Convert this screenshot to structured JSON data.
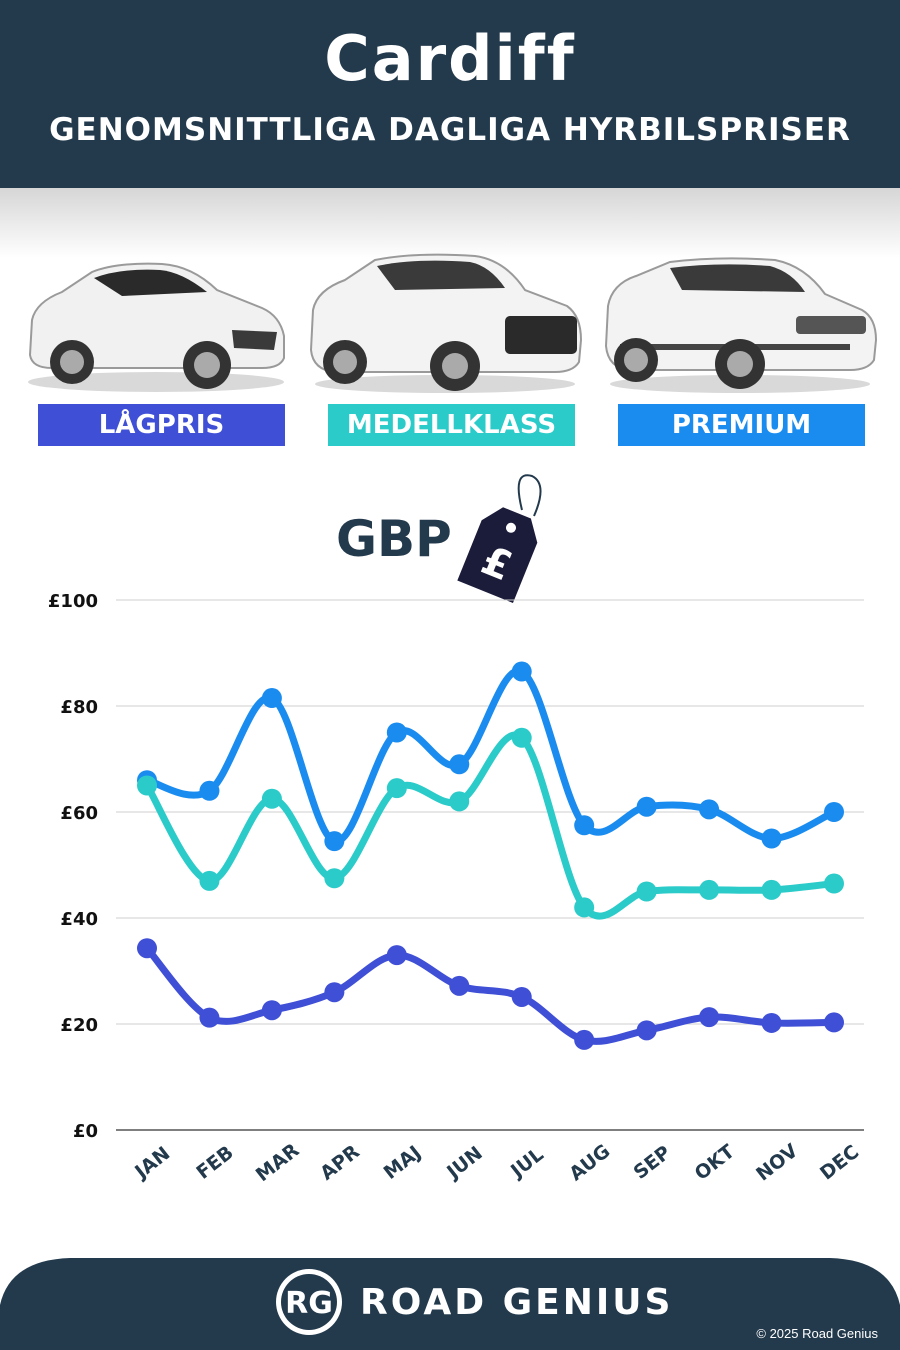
{
  "header": {
    "title": "Cardiff",
    "subtitle": "GENOMSNITTLIGA DAGLIGA HYRBILSPRISER"
  },
  "categories": [
    {
      "label": "LÅGPRIS",
      "color": "#3f4fd6",
      "icon": "hatchback-car-icon"
    },
    {
      "label": "MEDELLKLASS",
      "color": "#2bcbc9",
      "icon": "suv-car-icon"
    },
    {
      "label": "PREMIUM",
      "color": "#1a8cf0",
      "icon": "premium-suv-car-icon"
    }
  ],
  "currency": {
    "label": "GBP",
    "icon": "pound-price-tag-icon",
    "tag_symbol": "£"
  },
  "chart_data": {
    "type": "line",
    "categories": [
      "JAN",
      "FEB",
      "MAR",
      "APR",
      "MAJ",
      "JUN",
      "JUL",
      "AUG",
      "SEP",
      "OKT",
      "NOV",
      "DEC"
    ],
    "series": [
      {
        "name": "PREMIUM",
        "color": "#1a8cf0",
        "values": [
          66,
          64,
          81.5,
          54.5,
          75,
          69,
          86.5,
          57.5,
          61,
          60.5,
          55,
          60
        ]
      },
      {
        "name": "MEDELLKLASS",
        "color": "#2bcbc9",
        "values": [
          65,
          47,
          62.5,
          47.5,
          64.5,
          62,
          74,
          42,
          45,
          45.3,
          45.3,
          46.5
        ]
      },
      {
        "name": "LÅGPRIS",
        "color": "#3f4fd6",
        "values": [
          34.3,
          21.2,
          22.6,
          26,
          33,
          27.2,
          25.1,
          17,
          18.8,
          21.3,
          20.2,
          20.3
        ]
      }
    ],
    "ylim": [
      0,
      100
    ],
    "yticks": [
      "£0",
      "£20",
      "£40",
      "£60",
      "£80",
      "£100"
    ],
    "grid": true
  },
  "footer": {
    "logo_text": "RG",
    "brand": "ROAD GENIUS",
    "copyright": "© 2025 Road Genius"
  }
}
